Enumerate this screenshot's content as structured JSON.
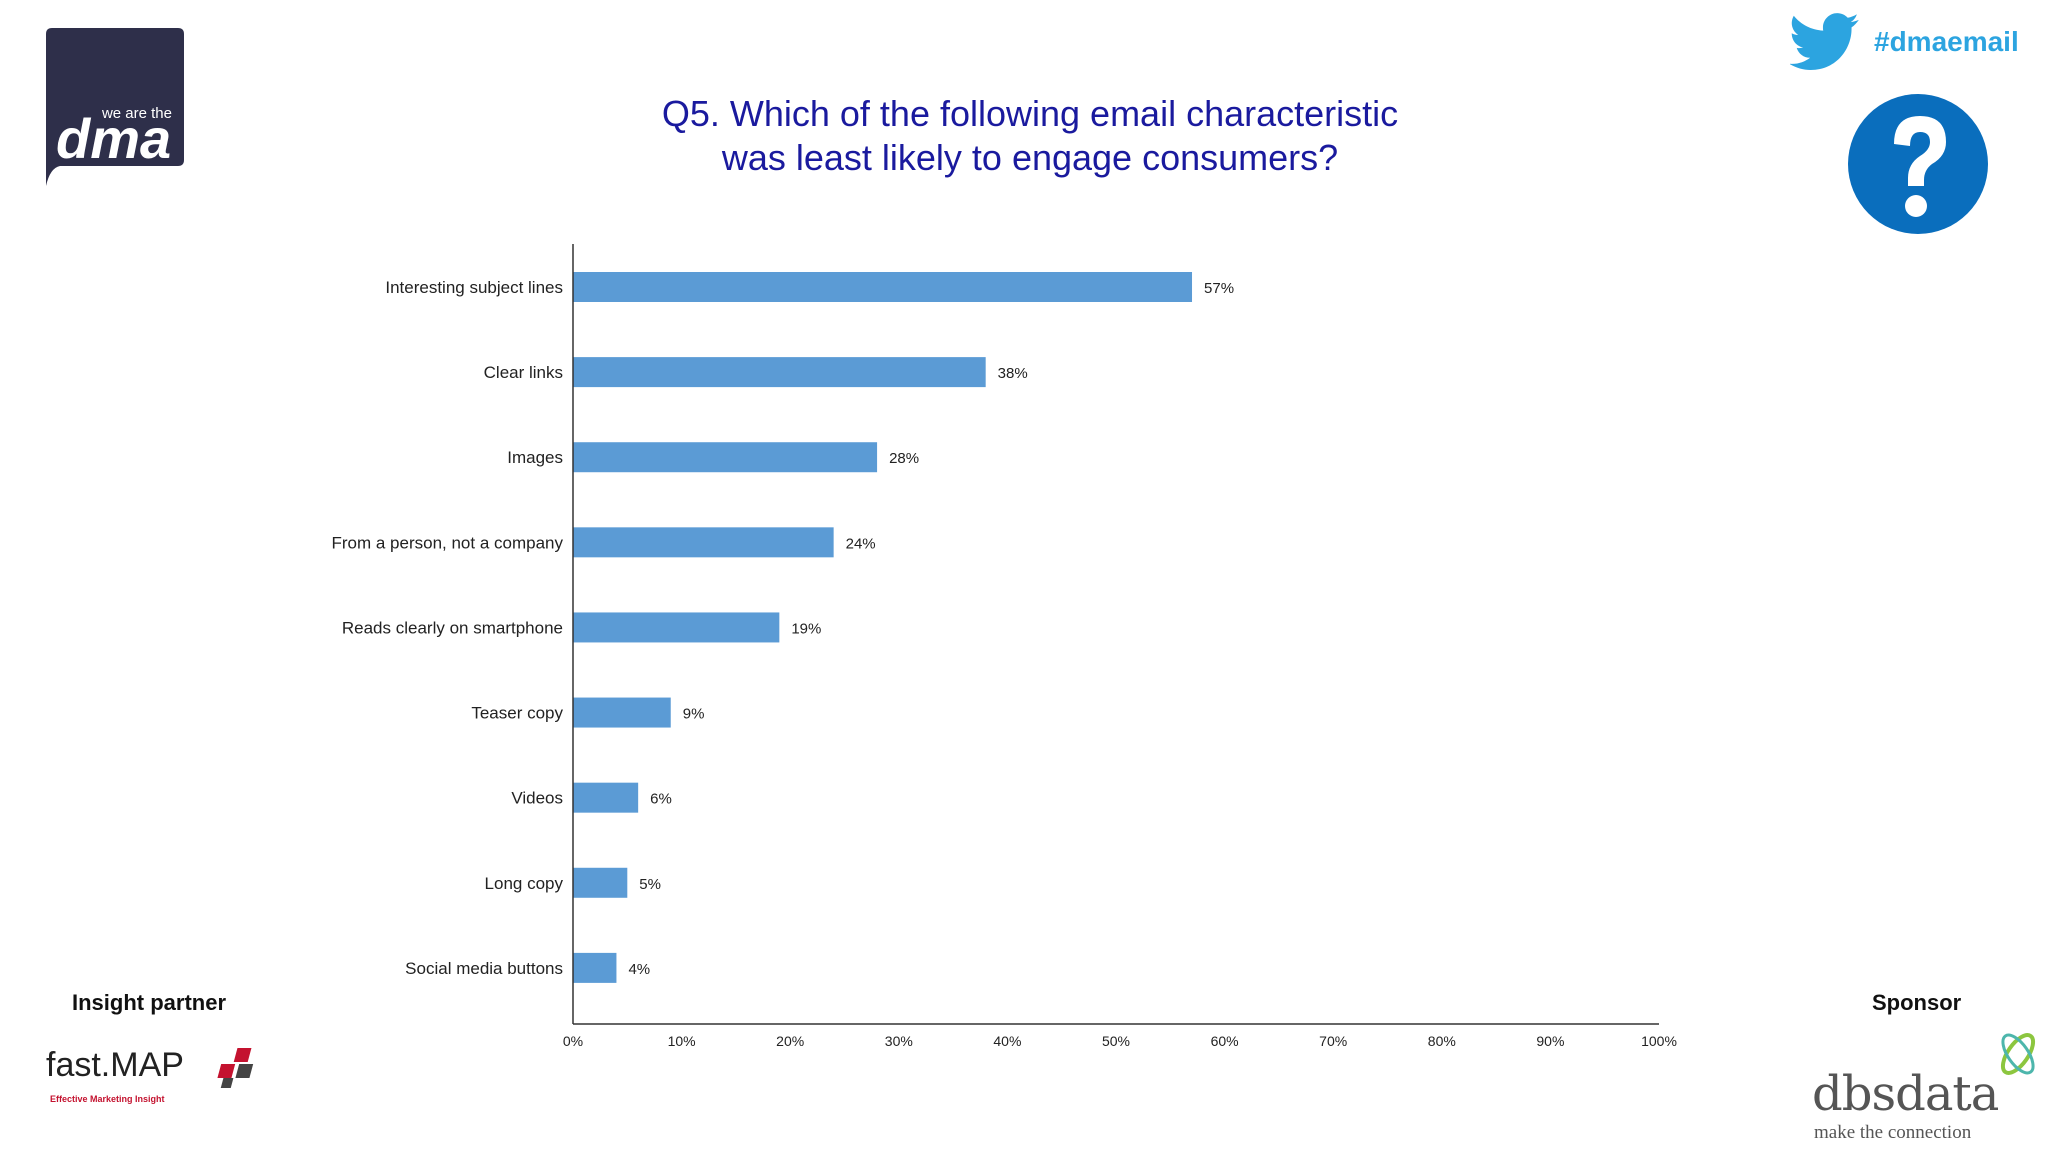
{
  "header": {
    "hashtag": "#dmaemail",
    "title_line1": "Q5. Which of the following email characteristic",
    "title_line2": "was least likely to engage consumers?",
    "dma_logo_small": "we are the",
    "dma_logo_big": "dma"
  },
  "footer": {
    "insight_label": "Insight partner",
    "sponsor_label": "Sponsor",
    "fastmap_name": "fast.MAP",
    "fastmap_tagline": "Effective Marketing Insight",
    "dbs_name": "dbsdata",
    "dbs_tagline": "make the connection"
  },
  "icons": {
    "twitter": "twitter-bird-icon",
    "help": "question-mark-icon"
  },
  "colors": {
    "bar": "#5b9bd5",
    "title": "#1a1a9e",
    "hashtag": "#2ca4e0",
    "help_circle": "#0a6ebd",
    "dma_logo": "#2e2f4a"
  },
  "chart_data": {
    "type": "bar",
    "orientation": "horizontal",
    "categories": [
      "Interesting subject lines",
      "Clear links",
      "Images",
      "From a person, not a company",
      "Reads clearly on smartphone",
      "Teaser copy",
      "Videos",
      "Long copy",
      "Social media buttons"
    ],
    "values": [
      57,
      38,
      28,
      24,
      19,
      9,
      6,
      5,
      4
    ],
    "value_labels": [
      "57%",
      "38%",
      "28%",
      "24%",
      "19%",
      "9%",
      "6%",
      "5%",
      "4%"
    ],
    "xlim": [
      0,
      100
    ],
    "xticks": [
      "0%",
      "10%",
      "20%",
      "30%",
      "40%",
      "50%",
      "60%",
      "70%",
      "80%",
      "90%",
      "100%"
    ],
    "title": "Q5. Which of the following email characteristic was least likely to engage consumers?",
    "grid": false,
    "legend": "none"
  }
}
